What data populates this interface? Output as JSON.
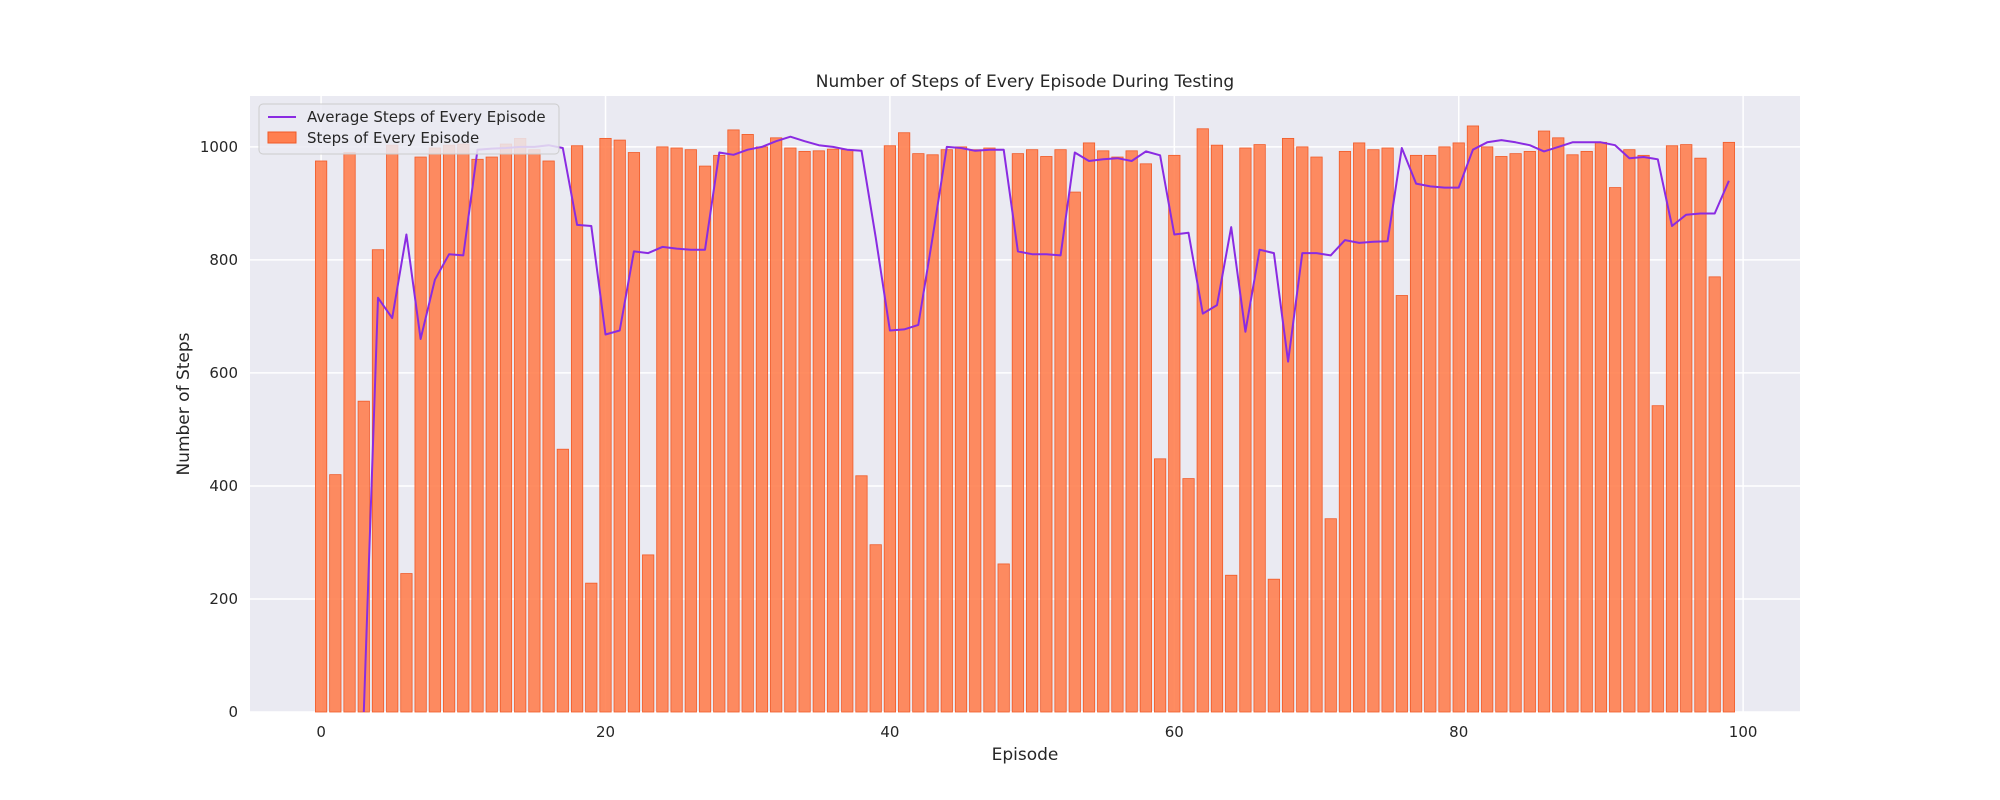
{
  "chart_data": {
    "type": "bar",
    "title": "Number of Steps of Every Episode During Testing",
    "xlabel": "Episode",
    "ylabel": "Number of Steps",
    "xlim": [
      -5,
      104
    ],
    "ylim": [
      0,
      1090
    ],
    "xticks": [
      0,
      20,
      40,
      60,
      80,
      100
    ],
    "yticks": [
      0,
      200,
      400,
      600,
      800,
      1000
    ],
    "grid": true,
    "legend_position": "top-left",
    "colors": {
      "background": "#eaeaf2",
      "grid": "#ffffff",
      "bar_fill": "#ff7f50",
      "bar_edge": "#f05a28",
      "line": "#8a2be2"
    },
    "series": [
      {
        "name": "Average Steps of Every Episode",
        "kind": "line",
        "x": [
          0,
          1,
          2,
          3,
          4,
          5,
          6,
          7,
          8,
          9,
          10,
          11,
          12,
          13,
          14,
          15,
          16,
          17,
          18,
          19,
          20,
          21,
          22,
          23,
          24,
          25,
          26,
          27,
          28,
          29,
          30,
          31,
          32,
          33,
          34,
          35,
          36,
          37,
          38,
          39,
          40,
          41,
          42,
          43,
          44,
          45,
          46,
          47,
          48,
          49,
          50,
          51,
          52,
          53,
          54,
          55,
          56,
          57,
          58,
          59,
          60,
          61,
          62,
          63,
          64,
          65,
          66,
          67,
          68,
          69,
          70,
          71,
          72,
          73,
          74,
          75,
          76,
          77,
          78,
          79,
          80,
          81,
          82,
          83,
          84,
          85,
          86,
          87,
          88,
          89,
          90,
          91,
          92,
          93,
          94,
          95,
          96,
          97,
          98,
          99
        ],
        "values": [
          null,
          null,
          null,
          0,
          733,
          697,
          845,
          660,
          765,
          810,
          808,
          995,
          997,
          998,
          1000,
          1000,
          1003,
          998,
          862,
          860,
          668,
          675,
          815,
          812,
          823,
          820,
          818,
          818,
          990,
          986,
          995,
          1000,
          1010,
          1018,
          1010,
          1003,
          1000,
          995,
          993,
          840,
          675,
          677,
          685,
          840,
          1000,
          998,
          993,
          995,
          995,
          815,
          810,
          810,
          808,
          990,
          975,
          978,
          980,
          975,
          992,
          985,
          845,
          848,
          705,
          720,
          858,
          673,
          818,
          812,
          620,
          812,
          812,
          808,
          835,
          830,
          832,
          833,
          998,
          935,
          930,
          928,
          928,
          995,
          1008,
          1012,
          1008,
          1003,
          992,
          1000,
          1008,
          1008,
          1008,
          1003,
          980,
          982,
          978,
          860,
          880,
          882,
          882,
          940
        ]
      },
      {
        "name": "Steps of Every Episode",
        "kind": "bar",
        "x": [
          0,
          1,
          2,
          3,
          4,
          5,
          6,
          7,
          8,
          9,
          10,
          11,
          12,
          13,
          14,
          15,
          16,
          17,
          18,
          19,
          20,
          21,
          22,
          23,
          24,
          25,
          26,
          27,
          28,
          29,
          30,
          31,
          32,
          33,
          34,
          35,
          36,
          37,
          38,
          39,
          40,
          41,
          42,
          43,
          44,
          45,
          46,
          47,
          48,
          49,
          50,
          51,
          52,
          53,
          54,
          55,
          56,
          57,
          58,
          59,
          60,
          61,
          62,
          63,
          64,
          65,
          66,
          67,
          68,
          69,
          70,
          71,
          72,
          73,
          74,
          75,
          76,
          77,
          78,
          79,
          80,
          81,
          82,
          83,
          84,
          85,
          86,
          87,
          88,
          89,
          90,
          91,
          92,
          93,
          94,
          95,
          96,
          97,
          98,
          99
        ],
        "values": [
          975,
          420,
          990,
          550,
          818,
          1003,
          245,
          982,
          998,
          1003,
          1005,
          978,
          982,
          1005,
          1015,
          995,
          975,
          465,
          1002,
          228,
          1015,
          1012,
          990,
          278,
          1000,
          998,
          995,
          966,
          985,
          1030,
          1022,
          1000,
          1016,
          998,
          992,
          993,
          996,
          995,
          418,
          296,
          1002,
          1025,
          988,
          986,
          995,
          1000,
          995,
          998,
          262,
          988,
          995,
          983,
          995,
          920,
          1007,
          993,
          982,
          993,
          970,
          448,
          985,
          413,
          1032,
          1003,
          242,
          998,
          1004,
          235,
          1015,
          1000,
          982,
          342,
          992,
          1007,
          995,
          998,
          737,
          985,
          985,
          1000,
          1007,
          1037,
          1000,
          983,
          988,
          992,
          1028,
          1016,
          986,
          992,
          1008,
          928,
          995,
          985,
          542,
          1002,
          1004,
          980,
          770,
          1008
        ]
      }
    ]
  }
}
